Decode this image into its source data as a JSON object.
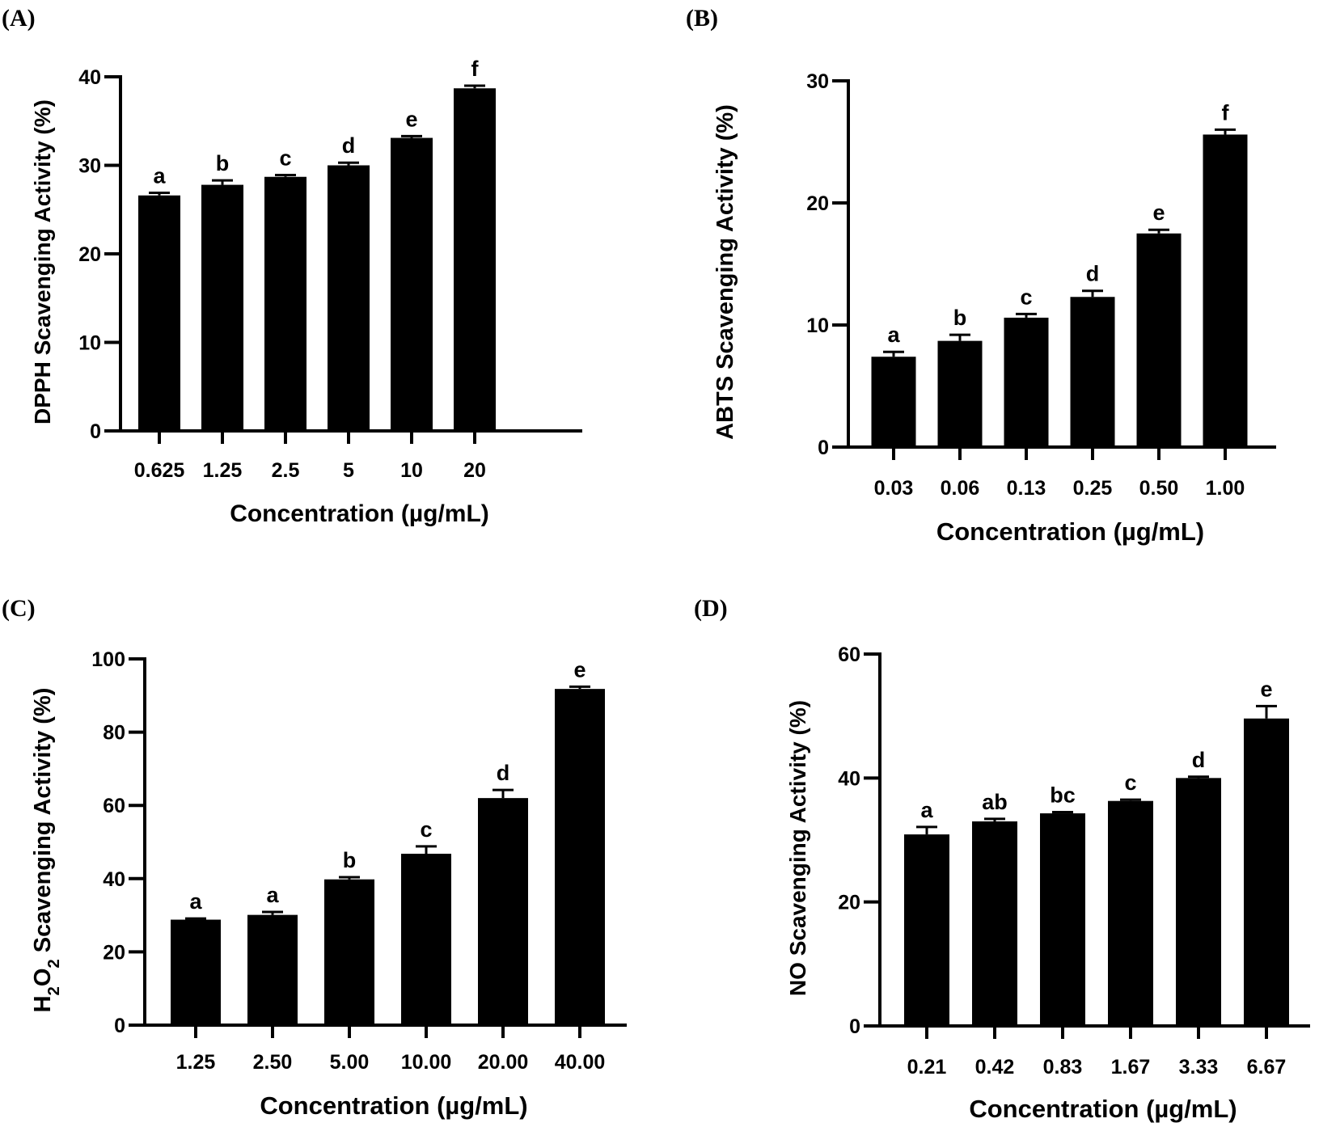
{
  "chart_data": [
    {
      "panel": "(A)",
      "type": "bar",
      "title": "",
      "xlabel": "Concentration (µg/mL)",
      "ylabel": "DPPH Scavenging Activity (%)",
      "ylim": [
        0,
        40
      ],
      "yticks": [
        0,
        10,
        20,
        30,
        40
      ],
      "categories": [
        "0.625",
        "1.25",
        "2.5",
        "5",
        "10",
        "20"
      ],
      "values": [
        26.6,
        27.8,
        28.7,
        30.0,
        33.1,
        38.7
      ],
      "errors": [
        0.3,
        0.5,
        0.2,
        0.3,
        0.2,
        0.3
      ],
      "annotations": [
        "a",
        "b",
        "c",
        "d",
        "e",
        "f"
      ],
      "grid": false,
      "color": "#000000"
    },
    {
      "panel": "(B)",
      "type": "bar",
      "title": "",
      "xlabel": "Concentration (µg/mL)",
      "ylabel": "ABTS Scavenging Activity (%)",
      "ylim": [
        0,
        30
      ],
      "yticks": [
        0,
        10,
        20,
        30
      ],
      "categories": [
        "0.03",
        "0.06",
        "0.13",
        "0.25",
        "0.50",
        "1.00"
      ],
      "values": [
        7.4,
        8.7,
        10.6,
        12.3,
        17.5,
        25.6
      ],
      "errors": [
        0.4,
        0.5,
        0.3,
        0.5,
        0.3,
        0.4
      ],
      "annotations": [
        "a",
        "b",
        "c",
        "d",
        "e",
        "f"
      ],
      "grid": false,
      "color": "#000000"
    },
    {
      "panel": "(C)",
      "type": "bar",
      "title": "",
      "xlabel": "Concentration (µg/mL)",
      "ylabel_parts": [
        "H",
        "2",
        "O",
        "2",
        " Scavenging Activity (%)"
      ],
      "ylabel": "H2O2 Scavenging Activity (%)",
      "ylim": [
        0,
        100
      ],
      "yticks": [
        0,
        20,
        40,
        60,
        80,
        100
      ],
      "categories": [
        "1.25",
        "2.50",
        "5.00",
        "10.00",
        "20.00",
        "40.00"
      ],
      "values": [
        28.8,
        30.1,
        39.8,
        46.8,
        62.0,
        91.8
      ],
      "errors": [
        0.3,
        0.8,
        0.6,
        2.0,
        2.2,
        0.6
      ],
      "annotations": [
        "a",
        "a",
        "b",
        "c",
        "d",
        "e"
      ],
      "grid": false,
      "color": "#000000"
    },
    {
      "panel": "(D)",
      "type": "bar",
      "title": "",
      "xlabel": "Concentration (µg/mL)",
      "ylabel": "NO Scavenging  Activity (%)",
      "ylim": [
        0,
        60
      ],
      "yticks": [
        0,
        20,
        40,
        60
      ],
      "categories": [
        "0.21",
        "0.42",
        "0.83",
        "1.67",
        "3.33",
        "6.67"
      ],
      "values": [
        30.9,
        33.0,
        34.3,
        36.3,
        40.0,
        49.6
      ],
      "errors": [
        1.2,
        0.4,
        0.2,
        0.2,
        0.2,
        2.0
      ],
      "annotations": [
        "a",
        "ab",
        "bc",
        "c",
        "d",
        "e"
      ],
      "grid": false,
      "color": "#000000"
    }
  ]
}
